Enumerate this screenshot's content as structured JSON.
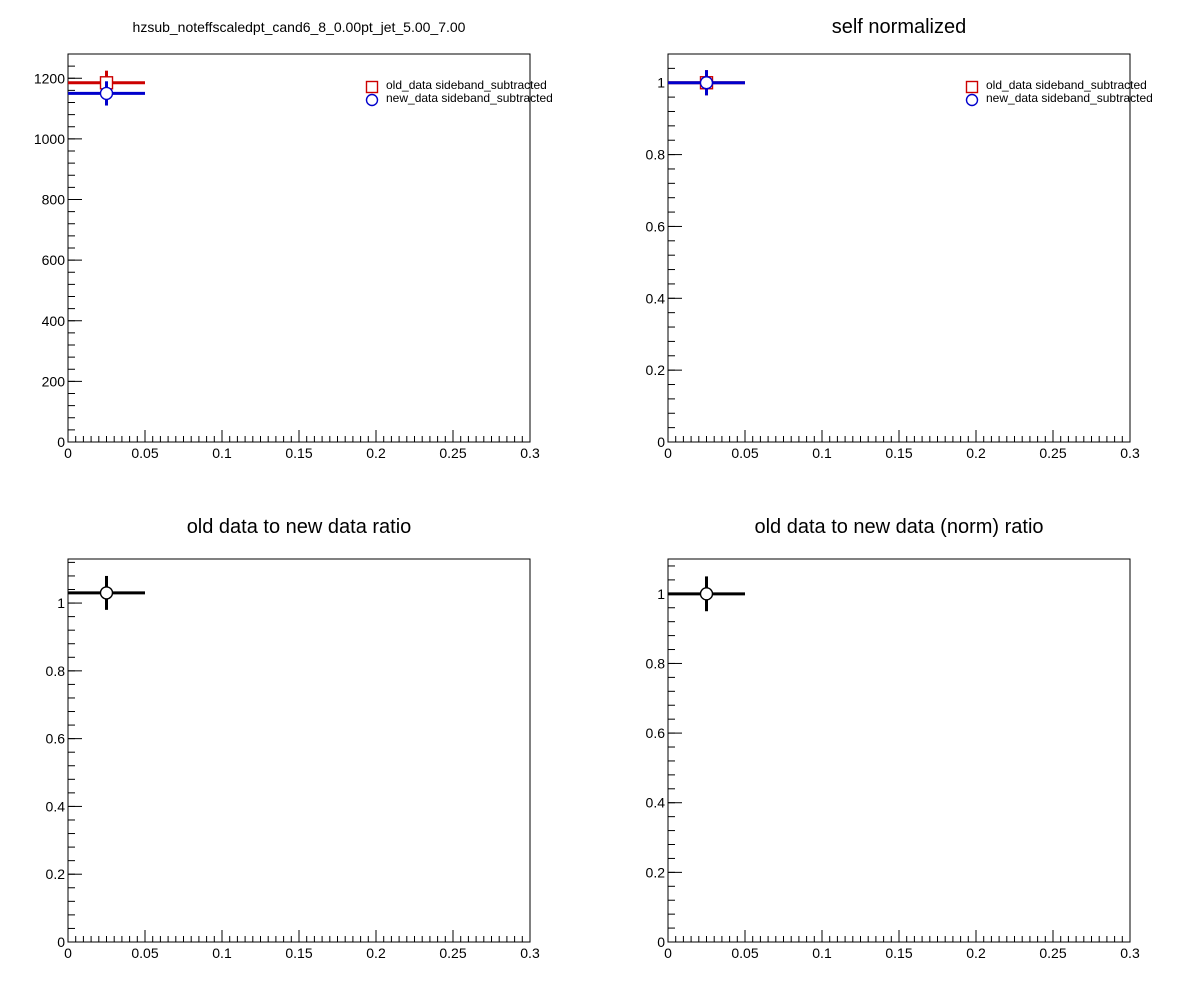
{
  "colors": {
    "old_data": "#cc0000",
    "new_data": "#0000cc",
    "ratio": "#000000",
    "frame": "#000000",
    "background": "#ffffff"
  },
  "chart_data": [
    {
      "type": "scatter",
      "title": "hzsub_noteffscaledpt_cand6_8_0.00pt_jet_5.00_7.00",
      "xlabel": "",
      "ylabel": "",
      "xlim": [
        0,
        0.3
      ],
      "ylim": [
        0,
        1280
      ],
      "x_ticks": [
        0,
        0.05,
        0.1,
        0.15,
        0.2,
        0.25,
        0.3
      ],
      "x_tick_labels": [
        "0",
        "0.05",
        "0.1",
        "0.15",
        "0.2",
        "0.25",
        "0.3"
      ],
      "y_ticks": [
        0,
        200,
        400,
        600,
        800,
        1000,
        1200
      ],
      "y_tick_labels": [
        "0",
        "200",
        "400",
        "600",
        "800",
        "1000",
        "1200"
      ],
      "legend_position": "top-right",
      "grid": false,
      "series": [
        {
          "name": "old_data sideband_subtracted",
          "marker": "open-square",
          "color": "#cc0000",
          "points": [
            {
              "x": 0.025,
              "y": 1185,
              "xerr": 0.025,
              "yerr": 40
            }
          ]
        },
        {
          "name": "new_data sideband_subtracted",
          "marker": "open-circle",
          "color": "#0000cc",
          "points": [
            {
              "x": 0.025,
              "y": 1150,
              "xerr": 0.025,
              "yerr": 40
            }
          ]
        }
      ]
    },
    {
      "type": "scatter",
      "title": "self normalized",
      "xlabel": "",
      "ylabel": "",
      "xlim": [
        0,
        0.3
      ],
      "ylim": [
        0,
        1.08
      ],
      "x_ticks": [
        0,
        0.05,
        0.1,
        0.15,
        0.2,
        0.25,
        0.3
      ],
      "x_tick_labels": [
        "0",
        "0.05",
        "0.1",
        "0.15",
        "0.2",
        "0.25",
        "0.3"
      ],
      "y_ticks": [
        0,
        0.2,
        0.4,
        0.6,
        0.8,
        1
      ],
      "y_tick_labels": [
        "0",
        "0.2",
        "0.4",
        "0.6",
        "0.8",
        "1"
      ],
      "legend_position": "top-right",
      "grid": false,
      "series": [
        {
          "name": "old_data sideband_subtracted",
          "marker": "open-square",
          "color": "#cc0000",
          "points": [
            {
              "x": 0.025,
              "y": 1,
              "xerr": 0.025,
              "yerr": 0.035
            }
          ]
        },
        {
          "name": "new_data sideband_subtracted",
          "marker": "open-circle",
          "color": "#0000cc",
          "points": [
            {
              "x": 0.025,
              "y": 1,
              "xerr": 0.025,
              "yerr": 0.035
            }
          ]
        }
      ]
    },
    {
      "type": "scatter",
      "title": "old data to new data ratio",
      "xlabel": "",
      "ylabel": "",
      "xlim": [
        0,
        0.3
      ],
      "ylim": [
        0,
        1.13
      ],
      "x_ticks": [
        0,
        0.05,
        0.1,
        0.15,
        0.2,
        0.25,
        0.3
      ],
      "x_tick_labels": [
        "0",
        "0.05",
        "0.1",
        "0.15",
        "0.2",
        "0.25",
        "0.3"
      ],
      "y_ticks": [
        0,
        0.2,
        0.4,
        0.6,
        0.8,
        1
      ],
      "y_tick_labels": [
        "0",
        "0.2",
        "0.4",
        "0.6",
        "0.8",
        "1"
      ],
      "legend_position": "none",
      "grid": false,
      "series": [
        {
          "marker": "open-circle",
          "color": "#000000",
          "points": [
            {
              "x": 0.025,
              "y": 1.03,
              "xerr": 0.025,
              "yerr": 0.05
            }
          ]
        }
      ]
    },
    {
      "type": "scatter",
      "title": "old data to new data (norm) ratio",
      "xlabel": "",
      "ylabel": "",
      "xlim": [
        0,
        0.3
      ],
      "ylim": [
        0,
        1.1
      ],
      "x_ticks": [
        0,
        0.05,
        0.1,
        0.15,
        0.2,
        0.25,
        0.3
      ],
      "x_tick_labels": [
        "0",
        "0.05",
        "0.1",
        "0.15",
        "0.2",
        "0.25",
        "0.3"
      ],
      "y_ticks": [
        0,
        0.2,
        0.4,
        0.6,
        0.8,
        1
      ],
      "y_tick_labels": [
        "0",
        "0.2",
        "0.4",
        "0.6",
        "0.8",
        "1"
      ],
      "legend_position": "none",
      "grid": false,
      "series": [
        {
          "marker": "open-circle",
          "color": "#000000",
          "points": [
            {
              "x": 0.025,
              "y": 1,
              "xerr": 0.025,
              "yerr": 0.05
            }
          ]
        }
      ]
    }
  ]
}
